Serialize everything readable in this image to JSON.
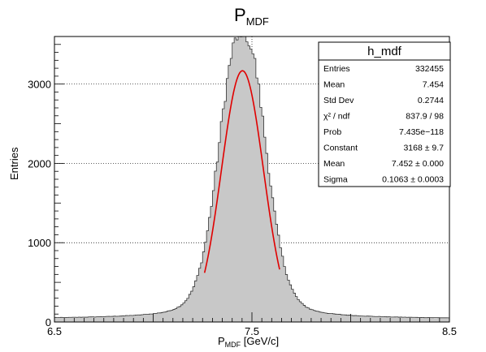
{
  "chart_data": {
    "type": "histogram",
    "title": "P",
    "title_sub": "MDF",
    "xlabel": "P",
    "xlabel_sub": "MDF",
    "xlabel_unit": " [GeV/c]",
    "ylabel": "Entries",
    "xlim": [
      6.5,
      8.5
    ],
    "ylim": [
      0,
      3600
    ],
    "x_ticks": [
      "6.5",
      "7.5",
      "8.5"
    ],
    "y_ticks": [
      "0",
      "1000",
      "2000",
      "3000"
    ],
    "x_tick_values": [
      6.5,
      7.5,
      8.5
    ],
    "y_tick_values": [
      0,
      1000,
      2000,
      3000
    ],
    "grid": true,
    "fill_color": "#c8c8c8",
    "line_color": "#333333",
    "fit_color": "#e00000",
    "fit": {
      "type": "gaus",
      "constant": 3168,
      "mean": 7.452,
      "sigma": 0.1063,
      "x_range": [
        7.26,
        7.64
      ]
    },
    "histogram_shape": {
      "bin_width": 0.01,
      "core_constant": 3168,
      "core_mean": 7.452,
      "core_sigma": 0.1063,
      "peak_max": 3450,
      "tail_amplitude": 1150,
      "tail_gamma": 0.11,
      "tail_background": 40
    },
    "stats": {
      "name": "h_mdf",
      "rows": [
        {
          "label": "Entries",
          "value": "332455"
        },
        {
          "label": "Mean",
          "value": "7.454"
        },
        {
          "label": "Std Dev",
          "value": "0.2744"
        },
        {
          "label": "χ² / ndf",
          "value": "837.9 / 98"
        },
        {
          "label": "Prob",
          "value": "7.435e−118"
        },
        {
          "label": "Constant",
          "value": "3168 ± 9.7"
        },
        {
          "label": "Mean",
          "value": "7.452 ± 0.000"
        },
        {
          "label": "Sigma",
          "value": "0.1063 ± 0.0003"
        }
      ]
    }
  }
}
